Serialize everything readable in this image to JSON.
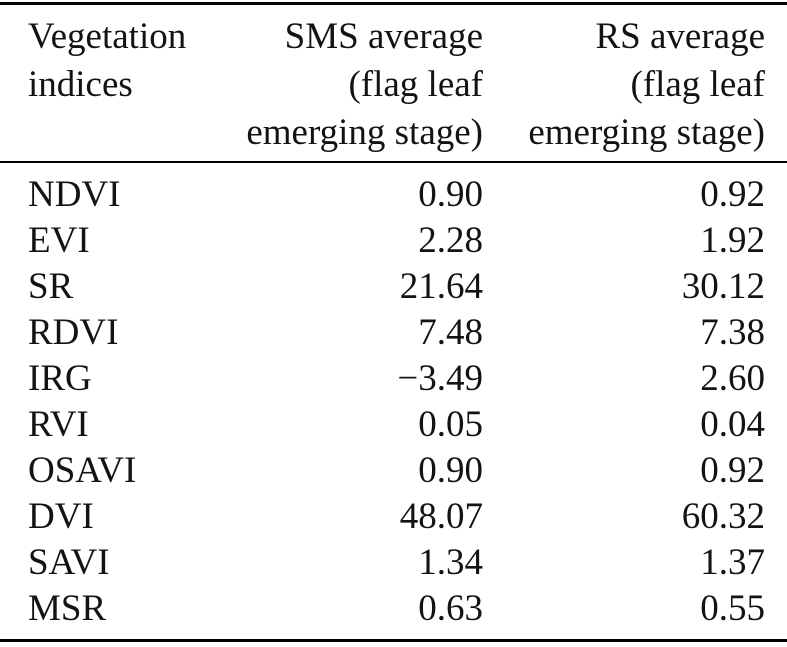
{
  "table": {
    "title": "vegetation-indices-comparison",
    "header": {
      "col1": {
        "lines": [
          "Vegetation",
          "indices"
        ]
      },
      "col2": {
        "lines": [
          "SMS average",
          "(flag leaf",
          "emerging stage)"
        ]
      },
      "col3": {
        "lines": [
          "RS average",
          "(flag leaf",
          "emerging stage)"
        ]
      }
    },
    "rows": [
      {
        "index": "NDVI",
        "sms": "0.90",
        "rs": "0.92"
      },
      {
        "index": "EVI",
        "sms": "2.28",
        "rs": "1.92"
      },
      {
        "index": "SR",
        "sms": "21.64",
        "rs": "30.12"
      },
      {
        "index": "RDVI",
        "sms": "7.48",
        "rs": "7.38"
      },
      {
        "index": "IRG",
        "sms": "−3.49",
        "rs": "2.60"
      },
      {
        "index": "RVI",
        "sms": "0.05",
        "rs": "0.04"
      },
      {
        "index": "OSAVI",
        "sms": "0.90",
        "rs": "0.92"
      },
      {
        "index": "DVI",
        "sms": "48.07",
        "rs": "60.32"
      },
      {
        "index": "SAVI",
        "sms": "1.34",
        "rs": "1.37"
      },
      {
        "index": "MSR",
        "sms": "0.63",
        "rs": "0.55"
      }
    ],
    "colors": {
      "text": "#131313",
      "rule": "#000000",
      "background": "#ffffff"
    }
  }
}
